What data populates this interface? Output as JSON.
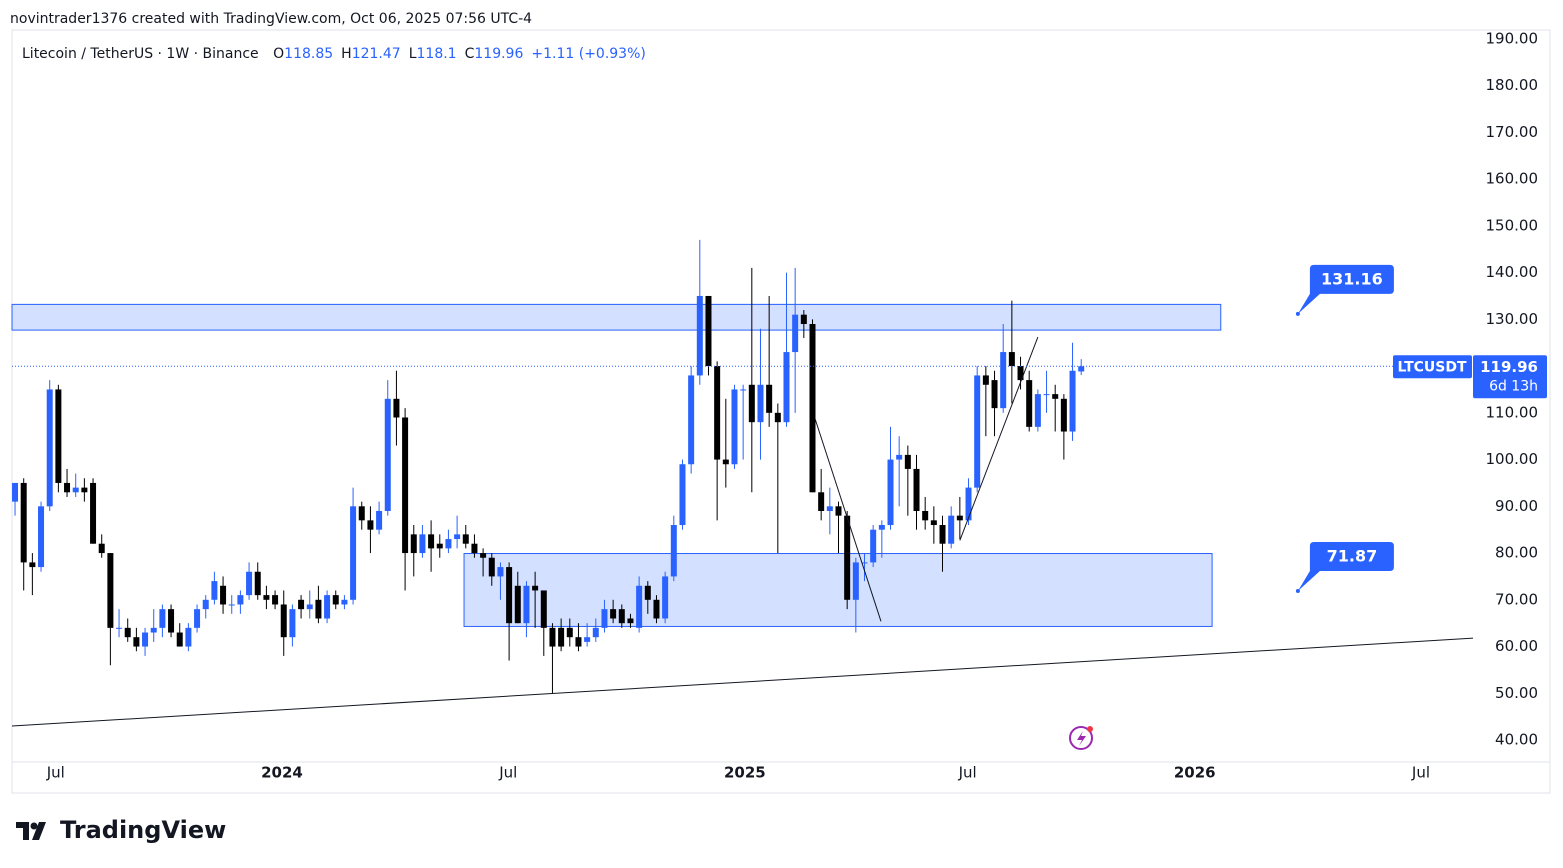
{
  "page_header": "novintrader1376 created with TradingView.com, Oct 06, 2025 07:56 UTC-4",
  "footer_logo": "TradingView",
  "chart_data": {
    "type": "candlestick",
    "title": "Litecoin / TetherUS · 1W · Binance",
    "ohlc_labels": [
      "O",
      "H",
      "L",
      "C"
    ],
    "change": "+1.11 (+0.93%)",
    "symbol": "LTCUSDT",
    "countdown": "6d 13h",
    "up_color": "#2962ff",
    "down_color": "#000000",
    "open": [
      91,
      95,
      78,
      77,
      90,
      115,
      95,
      93,
      94,
      95,
      82,
      80,
      64,
      64,
      62,
      60,
      63,
      64,
      68,
      63,
      60,
      64,
      68,
      70,
      73,
      69,
      69,
      71,
      76,
      71,
      71,
      69,
      62,
      70,
      68,
      70,
      66,
      71,
      69,
      70,
      90,
      87,
      85,
      89,
      113,
      109,
      84,
      80,
      84,
      82,
      81,
      83,
      84,
      82,
      80,
      79,
      75,
      77,
      73,
      65,
      73,
      72,
      64,
      64,
      64,
      62,
      61,
      62,
      64,
      68,
      68,
      66,
      64,
      73,
      70,
      66,
      75,
      86,
      99,
      118,
      135,
      120,
      100,
      99,
      115,
      116,
      108,
      116,
      110,
      108,
      123,
      131,
      129,
      93,
      89,
      90,
      88,
      70,
      78,
      78,
      85,
      86,
      100,
      101,
      98,
      89,
      87,
      86,
      82,
      88,
      87,
      94,
      118,
      117,
      111,
      123,
      120,
      117,
      107,
      114,
      114,
      113,
      106,
      118.85
    ],
    "high": [
      95,
      96,
      80,
      91,
      117,
      116,
      98,
      97,
      96,
      96,
      84,
      80,
      68,
      66,
      64,
      64,
      68,
      69,
      69,
      65,
      65,
      69,
      71,
      76,
      75,
      71,
      72,
      78,
      78,
      73,
      72,
      72,
      69,
      71,
      72,
      73,
      72,
      72,
      71,
      94,
      91,
      90,
      91,
      117,
      119,
      111,
      86,
      86,
      87,
      84,
      85,
      88,
      86,
      84,
      81,
      80,
      78,
      78,
      76,
      74,
      76,
      72,
      65,
      66,
      66,
      65,
      65,
      66,
      70,
      70,
      69,
      67,
      75,
      74,
      71,
      76,
      88,
      100,
      120,
      147,
      135,
      121,
      113,
      116,
      116,
      141,
      128,
      135,
      112,
      140,
      141,
      132,
      130,
      98,
      94,
      91,
      89,
      79,
      80,
      86,
      87,
      107,
      105,
      103,
      101,
      92,
      90,
      88,
      90,
      92,
      96,
      120,
      120,
      119,
      129,
      134,
      122,
      119,
      115,
      119,
      116,
      114,
      125,
      121.47
    ],
    "low": [
      88,
      72,
      71,
      76,
      89,
      93,
      92,
      92,
      91,
      82,
      79,
      56,
      62,
      61,
      59,
      58,
      61,
      62,
      62,
      60,
      59,
      63,
      66,
      69,
      67,
      67,
      67,
      70,
      70,
      68,
      68,
      58,
      60,
      66,
      66,
      65,
      65,
      68,
      68,
      69,
      85,
      80,
      84,
      88,
      103,
      72,
      75,
      79,
      76,
      79,
      80,
      81,
      81,
      79,
      75,
      73,
      70,
      57,
      65,
      62,
      64,
      58,
      50,
      59,
      60,
      59,
      60,
      61,
      63,
      65,
      64,
      64,
      63,
      67,
      65,
      65,
      74,
      85,
      97,
      116,
      118,
      87,
      94,
      98,
      100,
      93,
      100,
      107,
      80,
      107,
      110,
      126,
      93,
      87,
      84,
      80,
      68,
      63,
      74,
      77,
      79,
      85,
      90,
      88,
      85,
      85,
      82,
      76,
      81,
      83,
      86,
      93,
      105,
      105,
      110,
      112,
      115,
      106,
      106,
      110,
      106,
      100,
      104,
      118.1
    ],
    "close": [
      95,
      78,
      77,
      90,
      115,
      95,
      93,
      94,
      93,
      82,
      80,
      64,
      64,
      62,
      60,
      63,
      64,
      68,
      63,
      60,
      64,
      68,
      70,
      74,
      69,
      69,
      71,
      76,
      71,
      70,
      69,
      62,
      68,
      68,
      69,
      66,
      71,
      69,
      70,
      90,
      87,
      85,
      89,
      113,
      109,
      80,
      80,
      84,
      81,
      81,
      83,
      84,
      82,
      80,
      79,
      75,
      77,
      65,
      65,
      73,
      72,
      64,
      60,
      60,
      62,
      60,
      62,
      64,
      68,
      66,
      65,
      65,
      73,
      70,
      66,
      75,
      86,
      99,
      118,
      135,
      120,
      100,
      99,
      115,
      115,
      108,
      116,
      110,
      108,
      123,
      131,
      129,
      93,
      89,
      90,
      88,
      70,
      78,
      78,
      85,
      86,
      100,
      101,
      98,
      89,
      87,
      86,
      82,
      88,
      87,
      94,
      118,
      116,
      111,
      123,
      120,
      117,
      107,
      114,
      114,
      113,
      106,
      119,
      119.96
    ],
    "xlim": [
      -0.35,
      168.2
    ],
    "xticks": [
      {
        "value": 4.7,
        "label": "Jul"
      },
      {
        "value": 30.8,
        "label": "2024"
      },
      {
        "value": 56.9,
        "label": "Jul"
      },
      {
        "value": 84.2,
        "label": "2025"
      },
      {
        "value": 109.9,
        "label": "Jul"
      },
      {
        "value": 136.1,
        "label": "2026"
      },
      {
        "value": 162.2,
        "label": "Jul"
      }
    ],
    "ylim": [
      35.3,
      191.9
    ],
    "yticks": [
      {
        "value": 40,
        "label": "40.00"
      },
      {
        "value": 50,
        "label": "50.00"
      },
      {
        "value": 60,
        "label": "60.00"
      },
      {
        "value": 70,
        "label": "70.00"
      },
      {
        "value": 80,
        "label": "80.00"
      },
      {
        "value": 90,
        "label": "90.00"
      },
      {
        "value": 100,
        "label": "100.00"
      },
      {
        "value": 110,
        "label": "110.00"
      },
      {
        "value": 120,
        "label": "120.00"
      },
      {
        "value": 130,
        "label": "130.00"
      },
      {
        "value": 140,
        "label": "140.00"
      },
      {
        "value": 150,
        "label": "150.00"
      },
      {
        "value": 160,
        "label": "160.00"
      },
      {
        "value": 170,
        "label": "170.00"
      },
      {
        "value": 180,
        "label": "180.00"
      },
      {
        "value": 190,
        "label": "190.00"
      }
    ],
    "zones": [
      {
        "x": [
          -0.35,
          139.1
        ],
        "y": [
          127.7,
          133.2
        ]
      },
      {
        "x": [
          51.8,
          138.1
        ],
        "y": [
          64.3,
          79.9
        ]
      }
    ],
    "trend_lines": [
      {
        "x": [
          -0.35,
          168.2
        ],
        "y": [
          43.0,
          61.8
        ]
      },
      {
        "x": [
          92.3,
          99.9
        ],
        "y": [
          108.7,
          65.4
        ]
      },
      {
        "x": [
          109.0,
          118.0
        ],
        "y": [
          82.7,
          126.2
        ]
      }
    ],
    "price_labels": [
      {
        "x": 148,
        "value": 131.16
      },
      {
        "x": 148,
        "value": 71.87
      }
    ]
  }
}
